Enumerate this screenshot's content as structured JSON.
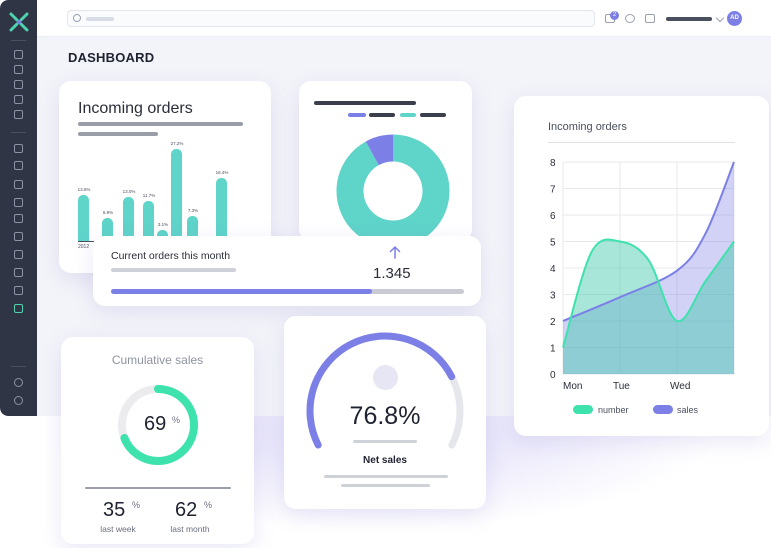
{
  "page": {
    "title": "DASHBOARD"
  },
  "topbar": {
    "notification_count": "2",
    "avatar_initials": "AD"
  },
  "incoming_orders_card": {
    "title": "Incoming orders",
    "x_label_first": "2012",
    "bar_labels": [
      "13.6%",
      "6.8%",
      "13.0%",
      "11.7%",
      "3.1%",
      "27.2%",
      "7.3%",
      "18.4%"
    ]
  },
  "current_orders": {
    "title": "Current orders this month",
    "value": "1.345",
    "progress": 0.74
  },
  "cumulative_sales": {
    "title": "Cumulative sales",
    "value": "69",
    "unit": "%",
    "last_week_value": "35",
    "last_week_label": "last week",
    "last_month_value": "62",
    "last_month_label": "last month"
  },
  "net_sales": {
    "value": "76.8%",
    "label": "Net sales",
    "gauge_fraction": 0.768
  },
  "colors": {
    "teal": "#5fd4c9",
    "purple": "#7b7fe6",
    "green": "#3ee2ad",
    "dark": "#2f3545"
  },
  "chart_data": [
    {
      "type": "bar",
      "title": "Incoming orders",
      "categories": [
        "2012",
        "",
        "",
        "",
        "",
        "",
        "",
        ""
      ],
      "values": [
        13.6,
        6.8,
        13.0,
        11.7,
        3.1,
        27.2,
        7.3,
        18.4
      ],
      "data_labels": [
        "13.6%",
        "6.8%",
        "13.0%",
        "11.7%",
        "3.1%",
        "27.2%",
        "7.3%",
        "18.4%"
      ]
    },
    {
      "type": "pie",
      "values": [
        92,
        8
      ],
      "colors": [
        "#5fd4c9",
        "#7b7fe6"
      ]
    },
    {
      "type": "area",
      "title": "Incoming orders",
      "x": [
        "Mon",
        "Tue",
        "Wed"
      ],
      "yticks": [
        "0",
        "1",
        "2",
        "3",
        "4",
        "5",
        "6",
        "7",
        "8"
      ],
      "ylim": [
        0,
        8
      ],
      "grid": true,
      "legend_position": "bottom",
      "series": [
        {
          "name": "number",
          "color": "#3ee2ad",
          "points": [
            [
              0,
              1
            ],
            [
              0.5,
              4.6
            ],
            [
              1,
              5
            ],
            [
              1.5,
              4.3
            ],
            [
              2,
              2
            ],
            [
              2.5,
              3.5
            ],
            [
              3,
              5
            ]
          ]
        },
        {
          "name": "sales",
          "color": "#7b7fe6",
          "points": [
            [
              0,
              2
            ],
            [
              1,
              2.9
            ],
            [
              2,
              3.9
            ],
            [
              2.5,
              5.3
            ],
            [
              3,
              8
            ]
          ]
        }
      ]
    }
  ]
}
